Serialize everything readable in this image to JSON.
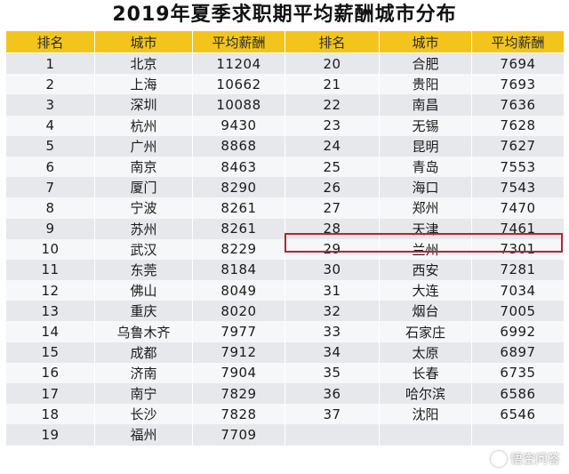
{
  "title": "2019年夏季求职期平均薪酬城市分布",
  "headers": [
    "排名",
    "城市",
    "平均薪酬",
    "排名",
    "城市",
    "平均薪酬"
  ],
  "left_rows": [
    {
      "rank": "1",
      "city": "北京",
      "salary": "11204"
    },
    {
      "rank": "2",
      "city": "上海",
      "salary": "10662"
    },
    {
      "rank": "3",
      "city": "深圳",
      "salary": "10088"
    },
    {
      "rank": "4",
      "city": "杭州",
      "salary": "9430"
    },
    {
      "rank": "5",
      "city": "广州",
      "salary": "8868"
    },
    {
      "rank": "6",
      "city": "南京",
      "salary": "8463"
    },
    {
      "rank": "7",
      "city": "厦门",
      "salary": "8290"
    },
    {
      "rank": "8",
      "city": "宁波",
      "salary": "8261"
    },
    {
      "rank": "9",
      "city": "苏州",
      "salary": "8261"
    },
    {
      "rank": "10",
      "city": "武汉",
      "salary": "8229"
    },
    {
      "rank": "11",
      "city": "东莞",
      "salary": "8184"
    },
    {
      "rank": "12",
      "city": "佛山",
      "salary": "8049"
    },
    {
      "rank": "13",
      "city": "重庆",
      "salary": "8020"
    },
    {
      "rank": "14",
      "city": "乌鲁木齐",
      "salary": "7977"
    },
    {
      "rank": "15",
      "city": "成都",
      "salary": "7912"
    },
    {
      "rank": "16",
      "city": "济南",
      "salary": "7904"
    },
    {
      "rank": "17",
      "city": "南宁",
      "salary": "7829"
    },
    {
      "rank": "18",
      "city": "长沙",
      "salary": "7828"
    },
    {
      "rank": "19",
      "city": "福州",
      "salary": "7709"
    }
  ],
  "right_rows": [
    {
      "rank": "20",
      "city": "合肥",
      "salary": "7694"
    },
    {
      "rank": "21",
      "city": "贵阳",
      "salary": "7693"
    },
    {
      "rank": "22",
      "city": "南昌",
      "salary": "7636"
    },
    {
      "rank": "23",
      "city": "无锡",
      "salary": "7628"
    },
    {
      "rank": "24",
      "city": "昆明",
      "salary": "7627"
    },
    {
      "rank": "25",
      "city": "青岛",
      "salary": "7553"
    },
    {
      "rank": "26",
      "city": "海口",
      "salary": "7543"
    },
    {
      "rank": "27",
      "city": "郑州",
      "salary": "7470"
    },
    {
      "rank": "28",
      "city": "天津",
      "salary": "7461"
    },
    {
      "rank": "29",
      "city": "兰州",
      "salary": "7301"
    },
    {
      "rank": "30",
      "city": "西安",
      "salary": "7281"
    },
    {
      "rank": "31",
      "city": "大连",
      "salary": "7034"
    },
    {
      "rank": "32",
      "city": "烟台",
      "salary": "7005"
    },
    {
      "rank": "33",
      "city": "石家庄",
      "salary": "6992"
    },
    {
      "rank": "34",
      "city": "太原",
      "salary": "6897"
    },
    {
      "rank": "35",
      "city": "长春",
      "salary": "6735"
    },
    {
      "rank": "36",
      "city": "哈尔滨",
      "salary": "6586"
    },
    {
      "rank": "37",
      "city": "沈阳",
      "salary": "6546"
    },
    {
      "rank": "",
      "city": "",
      "salary": ""
    }
  ],
  "highlighted_rank": "28",
  "colors": {
    "header_bg": "#f3c51c",
    "row_odd": "#e7e8ec",
    "row_even": "#f6f7f9",
    "highlight_border": "#b5262a"
  },
  "watermark": {
    "icon": "wukong-logo-icon",
    "text": "悟空问答"
  }
}
